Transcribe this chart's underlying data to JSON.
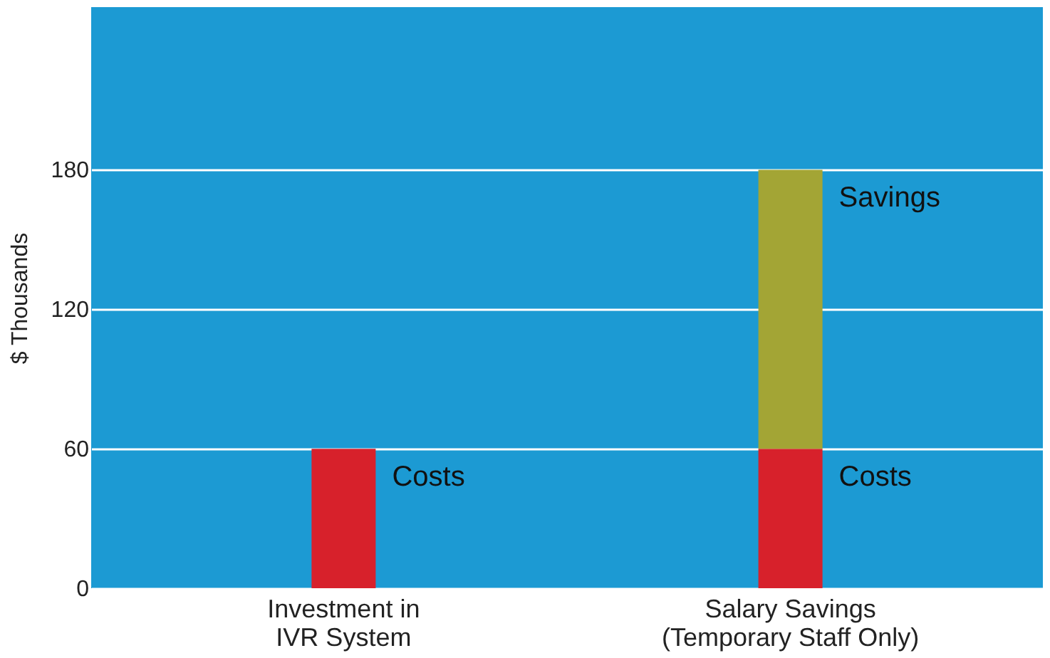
{
  "chart_data": {
    "type": "bar",
    "stacked": true,
    "ylabel": "$ Thousands",
    "categories": [
      "Investment in IVR System",
      "Salary Savings (Temporary Staff Only)"
    ],
    "series": [
      {
        "name": "Costs",
        "color": "#d7212b",
        "values": [
          60,
          60
        ]
      },
      {
        "name": "Savings",
        "color": "#a3a535",
        "values": [
          null,
          120
        ]
      }
    ],
    "ylim": [
      0,
      250
    ],
    "yticks": [
      0,
      60,
      120,
      180
    ],
    "grid": "y"
  }
}
